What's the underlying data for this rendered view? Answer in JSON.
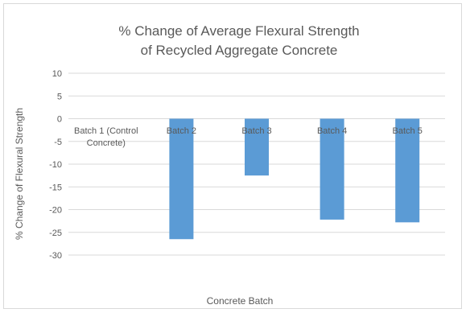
{
  "chart_data": {
    "type": "bar",
    "title": [
      "% Change of Average Flexural Strength",
      "of Recycled Aggregate Concrete"
    ],
    "xlabel": "Concrete Batch",
    "ylabel": "% Change of Flexural Strength",
    "categories": [
      "Batch 1 (Control Concrete)",
      "Batch 2",
      "Batch 3",
      "Batch 4",
      "Batch 5"
    ],
    "category_label_lines": [
      [
        "Batch 1 (Control",
        "Concrete)"
      ],
      [
        "Batch 2"
      ],
      [
        "Batch 3"
      ],
      [
        "Batch 4"
      ],
      [
        "Batch 5"
      ]
    ],
    "values": [
      0,
      -26.5,
      -12.5,
      -22.2,
      -22.8
    ],
    "ylim": [
      -30,
      10
    ],
    "yticks": [
      10,
      5,
      0,
      -5,
      -10,
      -15,
      -20,
      -25,
      -30
    ],
    "grid": true,
    "legend": "none",
    "bar_color": "#5b9bd5",
    "grid_color": "#d9d9d9"
  }
}
